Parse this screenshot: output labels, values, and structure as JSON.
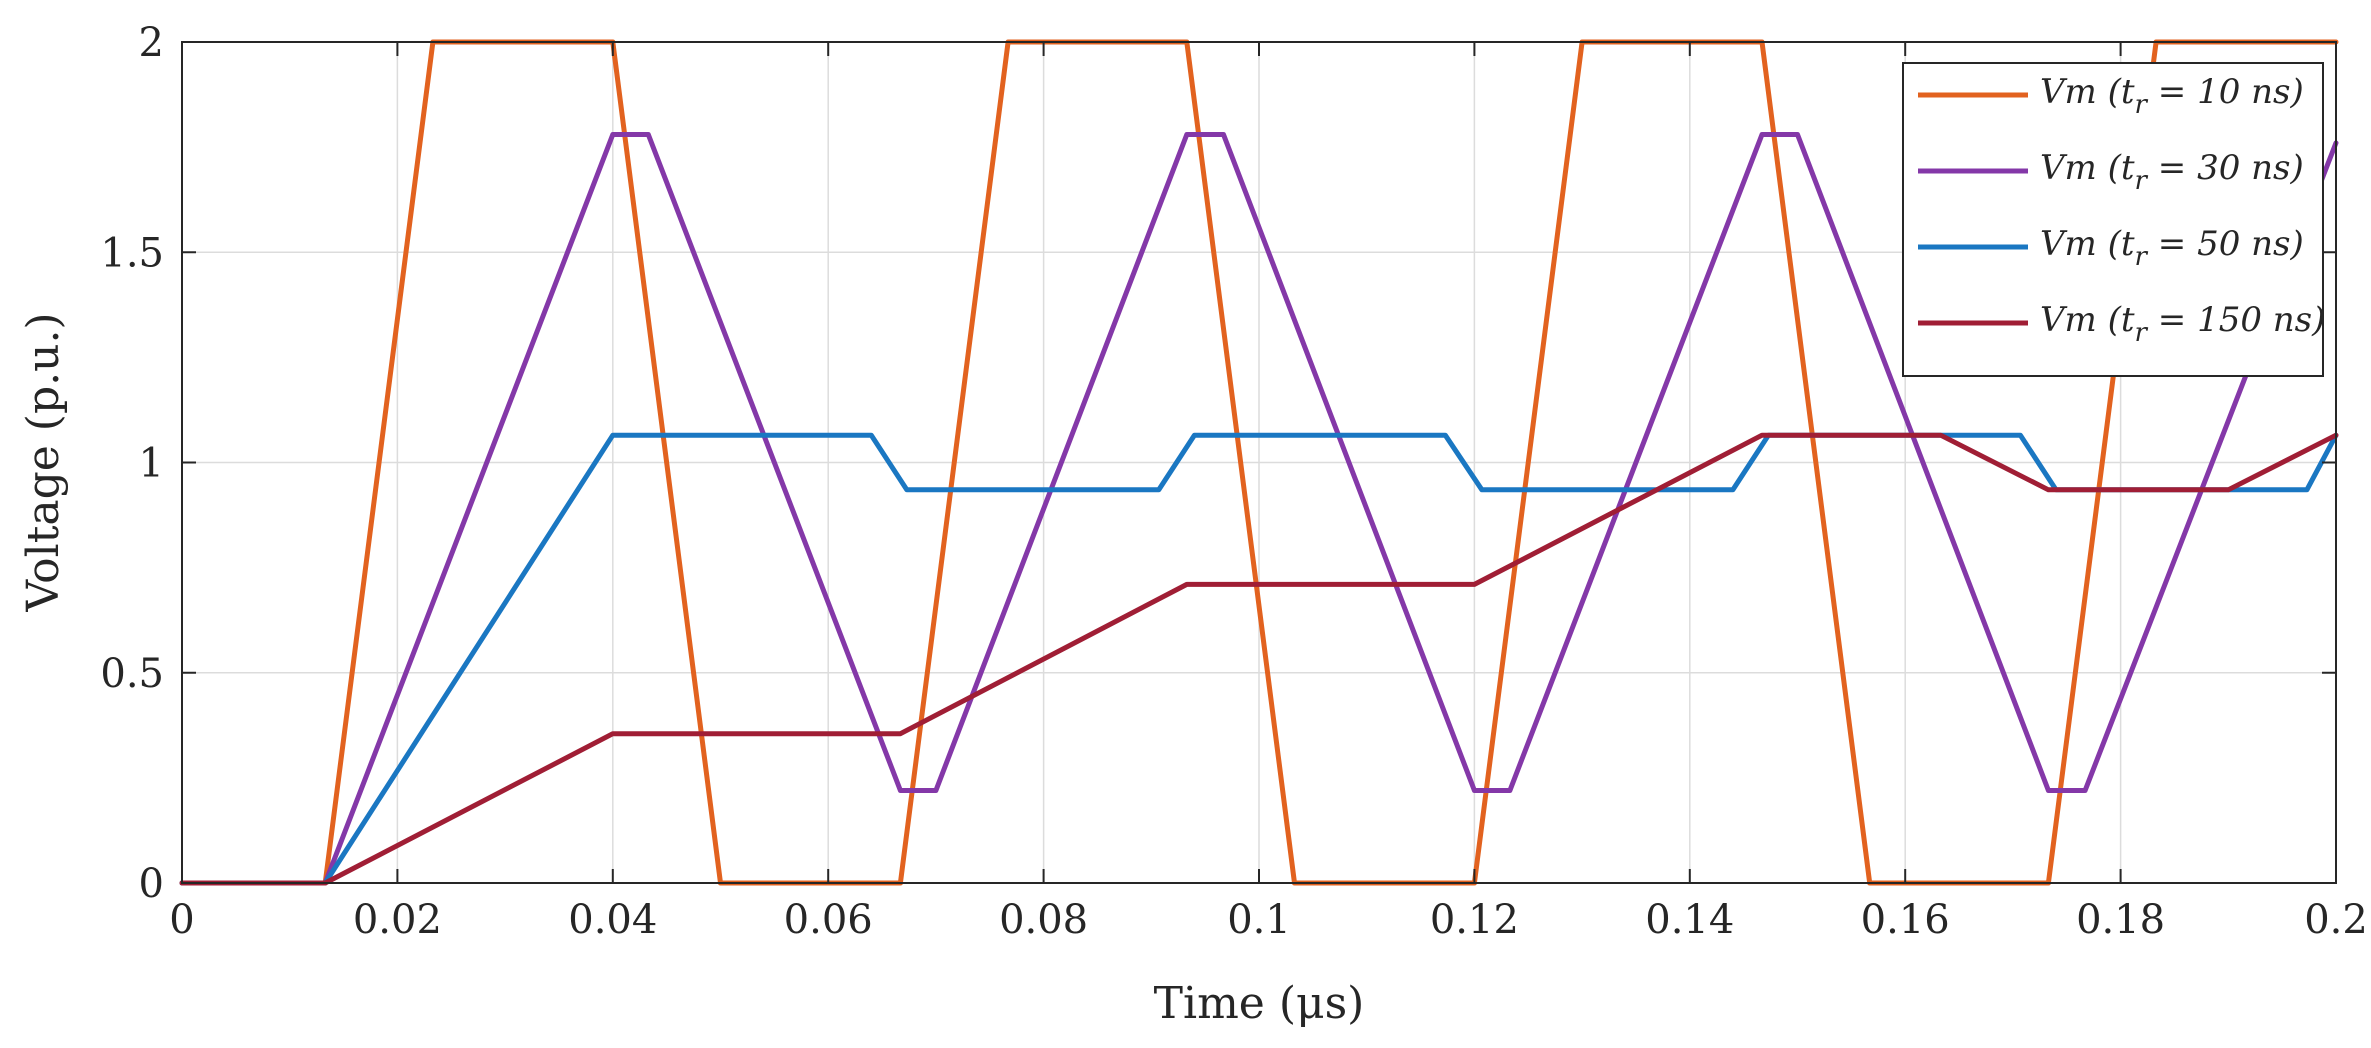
{
  "chart_data": {
    "type": "line",
    "title": "",
    "xlabel": "Time (μs)",
    "ylabel": "Voltage (p.u.)",
    "xlim": [
      0,
      0.2
    ],
    "ylim": [
      0,
      2
    ],
    "grid": true,
    "legend_position": "top-right",
    "x_ticks": [
      0,
      0.02,
      0.04,
      0.06,
      0.08,
      0.1,
      0.12,
      0.14,
      0.16,
      0.18,
      0.2
    ],
    "x_tick_labels": [
      "0",
      "0.02",
      "0.04",
      "0.06",
      "0.08",
      "0.1",
      "0.12",
      "0.14",
      "0.16",
      "0.18",
      "0.2"
    ],
    "y_ticks": [
      0,
      0.5,
      1,
      1.5,
      2
    ],
    "y_tick_labels": [
      "0",
      "0.5",
      "1",
      "1.5",
      "2"
    ],
    "series": [
      {
        "name": "Vm (tr = 10 ns)",
        "legend_main": "Vm (t",
        "legend_sub": "r",
        "legend_rest": " = 10 ns)",
        "color": "#E2621F",
        "x": [
          0,
          0.0133,
          0.0233,
          0.04,
          0.05,
          0.0667,
          0.0767,
          0.0933,
          0.1033,
          0.12,
          0.13,
          0.1467,
          0.1567,
          0.1733,
          0.1833,
          0.2
        ],
        "y": [
          0,
          0,
          2.0,
          2.0,
          0,
          0,
          2.0,
          2.0,
          0,
          0,
          2.0,
          2.0,
          0,
          0,
          2.0,
          2.0
        ]
      },
      {
        "name": "Vm (tr = 30 ns)",
        "legend_main": "Vm (t",
        "legend_sub": "r",
        "legend_rest": " = 30 ns)",
        "color": "#8438A8",
        "x": [
          0,
          0.0133,
          0.04,
          0.0433,
          0.0667,
          0.07,
          0.0933,
          0.0967,
          0.12,
          0.1233,
          0.1467,
          0.15,
          0.1733,
          0.1767,
          0.2
        ],
        "y": [
          0,
          0,
          1.78,
          1.78,
          0.22,
          0.22,
          1.78,
          1.78,
          0.22,
          0.22,
          1.78,
          1.78,
          0.22,
          0.22,
          1.76
        ]
      },
      {
        "name": "Vm (tr = 50 ns)",
        "legend_main": "Vm (t",
        "legend_sub": "r",
        "legend_rest": " = 50 ns)",
        "color": "#1A77C2",
        "x": [
          0,
          0.0133,
          0.04,
          0.064,
          0.0673,
          0.0907,
          0.094,
          0.1173,
          0.1207,
          0.144,
          0.1473,
          0.1707,
          0.174,
          0.1973,
          0.2
        ],
        "y": [
          0,
          0,
          1.065,
          1.065,
          0.935,
          0.935,
          1.065,
          1.065,
          0.935,
          0.935,
          1.065,
          1.065,
          0.935,
          0.935,
          1.065
        ]
      },
      {
        "name": "Vm (tr = 150 ns)",
        "legend_main": "Vm (t",
        "legend_sub": "r",
        "legend_rest": " = 150 ns)",
        "color": "#A01E35",
        "x": [
          0,
          0.0133,
          0.04,
          0.0667,
          0.0933,
          0.12,
          0.1467,
          0.1633,
          0.1733,
          0.19,
          0.2
        ],
        "y": [
          0,
          0,
          0.355,
          0.355,
          0.71,
          0.71,
          1.065,
          1.065,
          0.935,
          0.935,
          1.065
        ]
      }
    ]
  }
}
